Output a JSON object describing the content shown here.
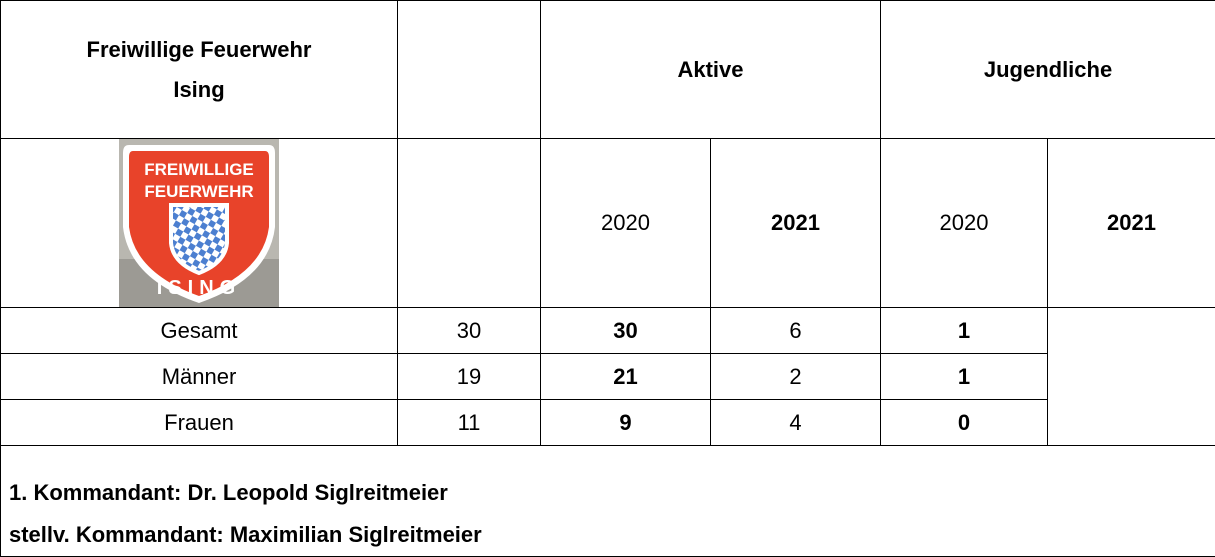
{
  "header": {
    "title_lines": [
      "Freiwillige Feuerwehr",
      "Ising"
    ],
    "groups": [
      "Aktive",
      "Jugendliche"
    ]
  },
  "years": [
    2020,
    2021,
    2020,
    2021
  ],
  "logo": {
    "lines": [
      "FREIWILLIGE",
      "FEUERWEHR"
    ],
    "bottom": "ISING"
  },
  "rows": [
    {
      "label": "Gesamt",
      "values": [
        30,
        30,
        6,
        1
      ]
    },
    {
      "label": "Männer",
      "values": [
        19,
        21,
        2,
        1
      ]
    },
    {
      "label": "Frauen",
      "values": [
        11,
        9,
        4,
        0
      ]
    }
  ],
  "footer": [
    "1. Kommandant: Dr. Leopold Siglreitmeier",
    "stellv. Kommandant: Maximilian Siglreitmeier"
  ]
}
